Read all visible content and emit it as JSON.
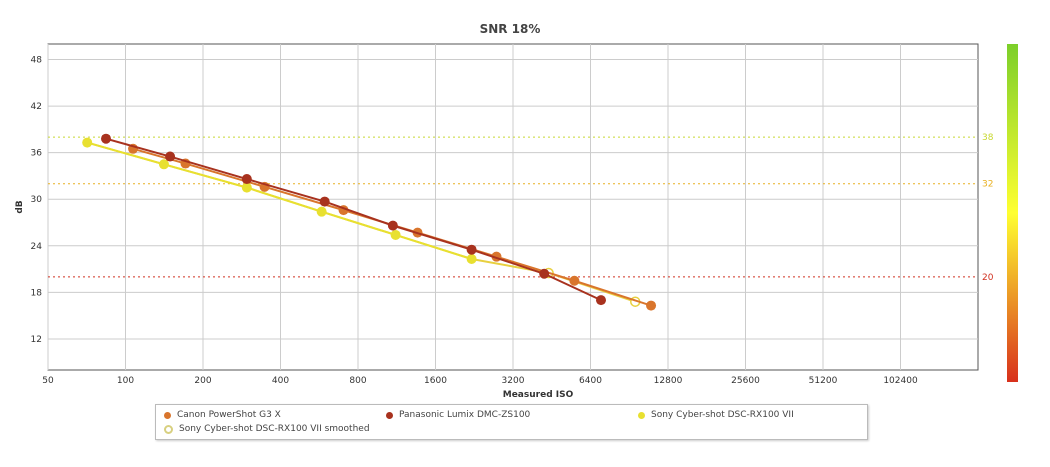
{
  "chart_data": {
    "type": "line",
    "title": "SNR 18%",
    "xlabel": "Measured ISO",
    "ylabel": "dB",
    "xscale": "log2",
    "xlim": [
      50,
      204800
    ],
    "ylim": [
      8,
      50
    ],
    "xticks": [
      "50",
      "100",
      "200",
      "400",
      "800",
      "1600",
      "3200",
      "6400",
      "12800",
      "25600",
      "51200",
      "102400"
    ],
    "xtick_values": [
      50,
      100,
      200,
      400,
      800,
      1600,
      3200,
      6400,
      12800,
      25600,
      51200,
      102400
    ],
    "yticks": [
      12,
      18,
      24,
      30,
      36,
      42,
      48
    ],
    "grid": true,
    "legend_position": "bottom",
    "reference_lines": [
      {
        "value": 38,
        "label": "38",
        "color": "#c8d830"
      },
      {
        "value": 32,
        "label": "32",
        "color": "#e8b020"
      },
      {
        "value": 20,
        "label": "20",
        "color": "#d03020"
      }
    ],
    "colorbar": {
      "top_color": "#7ccf2a",
      "mid_color": "#ffff30",
      "bottom_color": "#d8301c"
    },
    "series": [
      {
        "name": "Canon PowerShot G3 X",
        "color": "#d9752c",
        "x": [
          107,
          171,
          347,
          703,
          1363,
          2760,
          5540,
          11000
        ],
        "y": [
          36.5,
          34.6,
          31.6,
          28.6,
          25.7,
          22.6,
          19.5,
          16.3
        ]
      },
      {
        "name": "Panasonic Lumix DMC-ZS100",
        "color": "#a8321e",
        "x": [
          84,
          149,
          296,
          594,
          1093,
          2210,
          4230,
          7030
        ],
        "y": [
          37.8,
          35.5,
          32.6,
          29.7,
          26.6,
          23.5,
          20.4,
          17.0
        ]
      },
      {
        "name": "Sony Cyber-shot DSC-RX100 VII",
        "color": "#e8e030",
        "x": [
          71,
          141,
          296,
          578,
          1120,
          2210
        ],
        "y": [
          37.3,
          34.5,
          31.5,
          28.4,
          25.4,
          22.3
        ]
      },
      {
        "name": "Sony Cyber-shot DSC-RX100 VII smoothed",
        "color": "#e8d040",
        "x": [
          71,
          141,
          296,
          578,
          1120,
          2210,
          4400,
          9550
        ],
        "y": [
          37.3,
          34.5,
          31.5,
          28.4,
          25.4,
          22.3,
          20.5,
          16.8
        ],
        "marker_indices": [
          6,
          7
        ]
      }
    ]
  }
}
